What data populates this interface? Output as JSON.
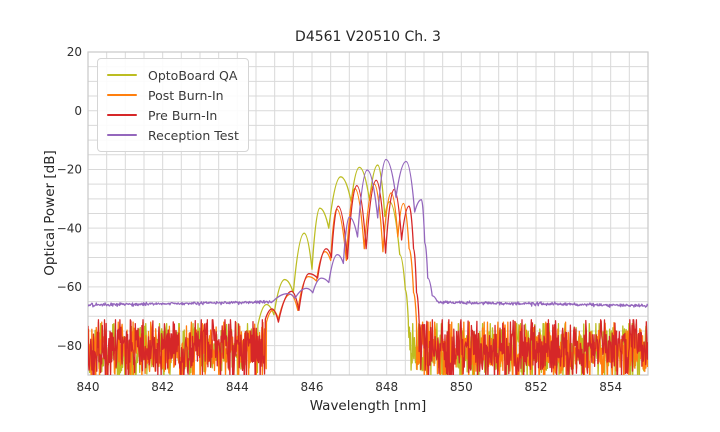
{
  "title": "D4561 V20510 Ch. 3",
  "axes": {
    "xlabel": "Wavelength [nm]",
    "ylabel": "Optical Power [dB]",
    "xlim": [
      840,
      855
    ],
    "ylim": [
      -90,
      20
    ],
    "x_minor_step": 0.5,
    "y_minor_step": 5,
    "xticks": [
      {
        "v": 840,
        "label": "840"
      },
      {
        "v": 842,
        "label": "842"
      },
      {
        "v": 844,
        "label": "844"
      },
      {
        "v": 846,
        "label": "846"
      },
      {
        "v": 848,
        "label": "848"
      },
      {
        "v": 850,
        "label": "850"
      },
      {
        "v": 852,
        "label": "852"
      },
      {
        "v": 854,
        "label": "854"
      }
    ],
    "yticks": [
      {
        "v": 20,
        "label": "20"
      },
      {
        "v": 0,
        "label": "0"
      },
      {
        "v": -20,
        "label": "−20"
      },
      {
        "v": -40,
        "label": "−40"
      },
      {
        "v": -60,
        "label": "−60"
      },
      {
        "v": -80,
        "label": "−80"
      }
    ]
  },
  "style": {
    "grid_color": "#d9d9d9",
    "frame_color": "#c9c9c9",
    "text_color": "#262626",
    "tick_color": "#2f2f2f",
    "background": "#ffffff"
  },
  "legend": {
    "position": "upper left"
  },
  "chart_data": {
    "type": "line",
    "title": "D4561 V20510 Ch. 3",
    "xlabel": "Wavelength [nm]",
    "ylabel": "Optical Power [dB]",
    "xlim": [
      840,
      855
    ],
    "ylim": [
      -90,
      20
    ],
    "grid": true,
    "legend_position": "upper left",
    "description": "Optical spectra of a VCSEL channel measured at four QA stages. Multimode peak cluster between ~845 and ~849 nm; OptoBoard QA / Post Burn-In / Pre Burn-In traces sit on a noisy ~-81 dB noise floor, Reception Test trace sits on a smooth ~-66 dB floor and is shifted ~0.3 nm to longer wavelength.",
    "series": [
      {
        "name": "OptoBoard QA",
        "color": "#bcbd22",
        "segments": [
          {
            "type": "noise",
            "from": 840,
            "to": 844.55,
            "base": -81.5,
            "base2": -81.5,
            "sigma": 5.2,
            "clip_top": -72.5,
            "clip_bot": -95,
            "seed": 101
          },
          {
            "type": "anchors",
            "points": [
              [
                844.55,
                -73
              ],
              [
                844.78,
                -66
              ],
              [
                844.98,
                -69.5
              ],
              [
                845.27,
                -57.5
              ],
              [
                845.5,
                -62
              ],
              [
                845.79,
                -41.7
              ],
              [
                846.0,
                -54
              ],
              [
                846.21,
                -33.2
              ],
              [
                846.45,
                -40
              ],
              [
                846.77,
                -22.5
              ],
              [
                847.05,
                -31
              ],
              [
                847.27,
                -19.3
              ],
              [
                847.54,
                -30.5
              ],
              [
                847.76,
                -18.5
              ],
              [
                847.95,
                -36
              ],
              [
                848.08,
                -31
              ],
              [
                848.35,
                -49
              ],
              [
                848.5,
                -61
              ],
              [
                848.58,
                -71.5
              ]
            ]
          },
          {
            "type": "noise",
            "from": 848.58,
            "to": 855,
            "base": -81.5,
            "base2": -81.5,
            "sigma": 5.2,
            "clip_top": -72.5,
            "clip_bot": -95,
            "seed": 102
          }
        ]
      },
      {
        "name": "Post Burn-In",
        "color": "#ff7f0e",
        "segments": [
          {
            "type": "noise",
            "from": 840,
            "to": 844.78,
            "base": -81.5,
            "base2": -81.5,
            "sigma": 5.2,
            "clip_top": -72,
            "clip_bot": -95,
            "seed": 201
          },
          {
            "type": "anchors",
            "points": [
              [
                844.78,
                -72
              ],
              [
                844.95,
                -68
              ],
              [
                845.1,
                -71
              ],
              [
                845.42,
                -62.5
              ],
              [
                845.62,
                -68
              ],
              [
                845.9,
                -56.5
              ],
              [
                846.12,
                -58
              ],
              [
                846.35,
                -48
              ],
              [
                846.5,
                -51
              ],
              [
                846.66,
                -33.5
              ],
              [
                846.92,
                -51
              ],
              [
                847.15,
                -26.5
              ],
              [
                847.4,
                -47
              ],
              [
                847.67,
                -25
              ],
              [
                847.9,
                -48
              ],
              [
                848.12,
                -28
              ],
              [
                848.3,
                -43
              ],
              [
                848.45,
                -31.6
              ],
              [
                848.6,
                -47
              ],
              [
                848.72,
                -62
              ],
              [
                848.8,
                -72
              ]
            ]
          },
          {
            "type": "noise",
            "from": 848.8,
            "to": 855,
            "base": -81.5,
            "base2": -81.5,
            "sigma": 5.2,
            "clip_top": -72,
            "clip_bot": -95,
            "seed": 202
          }
        ]
      },
      {
        "name": "Pre Burn-In",
        "color": "#d62728",
        "segments": [
          {
            "type": "noise",
            "from": 840,
            "to": 844.75,
            "base": -81,
            "base2": -81,
            "sigma": 5.4,
            "clip_top": -71.2,
            "clip_bot": -95,
            "seed": 301
          },
          {
            "type": "anchors",
            "points": [
              [
                844.75,
                -71
              ],
              [
                844.93,
                -67.5
              ],
              [
                845.1,
                -72
              ],
              [
                845.45,
                -61.5
              ],
              [
                845.65,
                -68
              ],
              [
                845.92,
                -55.5
              ],
              [
                846.15,
                -57
              ],
              [
                846.38,
                -47
              ],
              [
                846.52,
                -50
              ],
              [
                846.7,
                -32.5
              ],
              [
                846.95,
                -50.5
              ],
              [
                847.2,
                -25.5
              ],
              [
                847.45,
                -47
              ],
              [
                847.72,
                -23.7
              ],
              [
                847.97,
                -48.5
              ],
              [
                848.2,
                -26.8
              ],
              [
                848.4,
                -44
              ],
              [
                848.6,
                -32.5
              ],
              [
                848.72,
                -47
              ],
              [
                848.8,
                -62
              ],
              [
                848.87,
                -72
              ]
            ]
          },
          {
            "type": "noise",
            "from": 848.87,
            "to": 855,
            "base": -81,
            "base2": -81,
            "sigma": 5.4,
            "clip_top": -71.2,
            "clip_bot": -95,
            "seed": 302
          }
        ]
      },
      {
        "name": "Reception Test",
        "color": "#9467bd",
        "segments": [
          {
            "type": "noise",
            "from": 840,
            "to": 844.95,
            "base": -66.2,
            "base2": -65.1,
            "sigma": 0.25,
            "clip_top": -64.5,
            "clip_bot": -67.5,
            "seed": 401
          },
          {
            "type": "anchors",
            "points": [
              [
                844.95,
                -65.0
              ],
              [
                845.35,
                -62.3
              ],
              [
                845.55,
                -63.8
              ],
              [
                845.85,
                -60.5
              ],
              [
                846.02,
                -62.0
              ],
              [
                846.25,
                -57.0
              ],
              [
                846.45,
                -58.5
              ],
              [
                846.68,
                -49.0
              ],
              [
                846.84,
                -52.0
              ],
              [
                847.0,
                -36.2
              ],
              [
                847.22,
                -43.0
              ],
              [
                847.48,
                -20.2
              ],
              [
                847.76,
                -36.5
              ],
              [
                847.98,
                -16.6
              ],
              [
                848.25,
                -29.5
              ],
              [
                848.52,
                -17.3
              ],
              [
                848.75,
                -34.5
              ],
              [
                848.93,
                -30.3
              ],
              [
                849.02,
                -45.0
              ],
              [
                849.1,
                -57.0
              ],
              [
                849.22,
                -63.0
              ],
              [
                849.35,
                -64.9
              ]
            ]
          },
          {
            "type": "noise",
            "from": 849.35,
            "to": 855,
            "base": -65.2,
            "base2": -66.4,
            "sigma": 0.28,
            "clip_top": -64.3,
            "clip_bot": -67.8,
            "seed": 402
          }
        ]
      }
    ]
  }
}
